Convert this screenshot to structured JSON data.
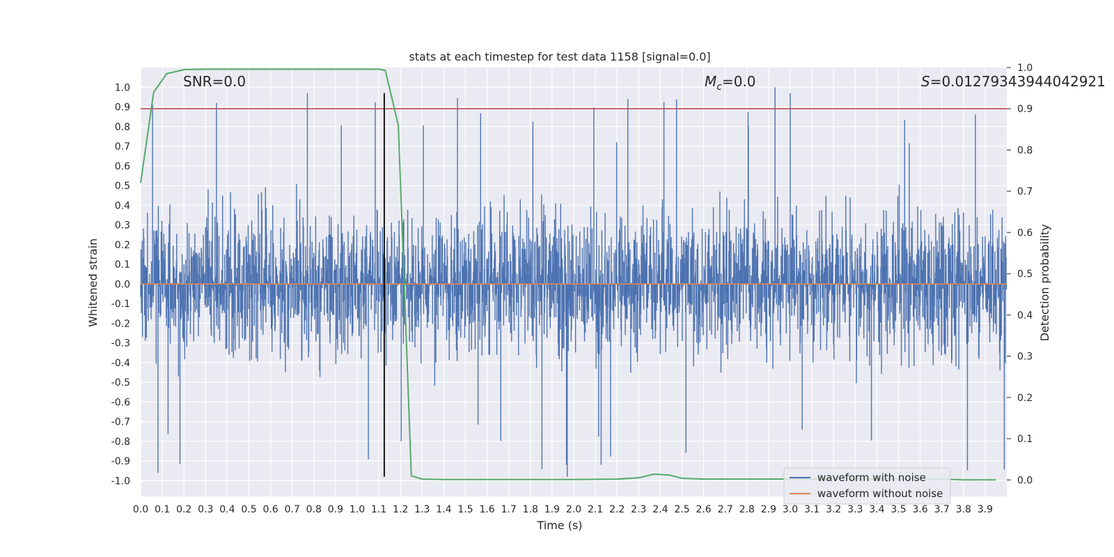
{
  "chart_data": {
    "type": "line",
    "title": "stats at each timestep for test data 1158 [signal=0.0]",
    "xlabel": "Time (s)",
    "ylabel_left": "Whitened strain",
    "ylabel_right": "Detection probability",
    "xlim": [
      0.0,
      4.0
    ],
    "ylim_left": [
      -1.08,
      1.1
    ],
    "ylim_right": [
      -0.04,
      1.0
    ],
    "x_ticks": [
      "0.0",
      "0.1",
      "0.2",
      "0.3",
      "0.4",
      "0.5",
      "0.6",
      "0.7",
      "0.8",
      "0.9",
      "1.0",
      "1.1",
      "1.2",
      "1.3",
      "1.4",
      "1.5",
      "1.6",
      "1.7",
      "1.8",
      "1.9",
      "2.0",
      "2.1",
      "2.2",
      "2.3",
      "2.4",
      "2.5",
      "2.6",
      "2.7",
      "2.8",
      "2.9",
      "3.0",
      "3.1",
      "3.2",
      "3.3",
      "3.4",
      "3.5",
      "3.6",
      "3.7",
      "3.8",
      "3.9"
    ],
    "y_ticks_left": [
      "1.0",
      "0.9",
      "0.8",
      "0.7",
      "0.6",
      "0.5",
      "0.4",
      "0.3",
      "0.2",
      "0.1",
      "0.0",
      "-0.1",
      "-0.2",
      "-0.3",
      "-0.4",
      "-0.5",
      "-0.6",
      "-0.7",
      "-0.8",
      "-0.9",
      "-1.0"
    ],
    "y_ticks_right": [
      "1.0",
      "0.9",
      "0.8",
      "0.7",
      "0.6",
      "0.5",
      "0.4",
      "0.3",
      "0.2",
      "0.1",
      "0.0"
    ],
    "annotations": {
      "snr": "SNR=0.0",
      "mc": "=0.0",
      "mc_symbol": "M",
      "mc_sub": "c",
      "s": "=0.01279343944042921",
      "s_symbol": "S"
    },
    "threshold_right": 0.9,
    "vertical_line_x": 1.125,
    "legend": {
      "position": "lower right",
      "entries": [
        "waveform with noise",
        "waveform without noise"
      ]
    },
    "colors": {
      "noise": "#4c72b0",
      "clean": "#dd8452",
      "probability": "#55a868",
      "threshold": "#c44e52",
      "vline": "#000000",
      "background": "#eaeaf2"
    },
    "series": [
      {
        "name": "waveform with noise",
        "axis": "left",
        "description_values": "random noise with amplitude up to ~1.0 (peak 1.0 at t≈2.93, min -0.98 at t≈1.97)"
      },
      {
        "name": "waveform without noise",
        "axis": "left",
        "x": [
          0.0,
          4.0
        ],
        "y": [
          0.0,
          0.0
        ]
      },
      {
        "name": "detection probability",
        "axis": "right",
        "x": [
          0.0,
          0.06,
          0.12,
          0.2,
          0.3,
          0.5,
          0.8,
          1.0,
          1.1,
          1.13,
          1.19,
          1.25,
          1.3,
          1.4,
          1.6,
          1.8,
          2.0,
          2.2,
          2.3,
          2.37,
          2.44,
          2.5,
          2.6,
          2.8,
          3.0,
          3.2,
          3.5,
          3.7,
          3.8,
          3.95
        ],
        "y": [
          0.72,
          0.94,
          0.985,
          0.995,
          0.996,
          0.996,
          0.996,
          0.996,
          0.996,
          0.993,
          0.86,
          0.01,
          0.002,
          0.001,
          0.001,
          0.001,
          0.001,
          0.002,
          0.005,
          0.014,
          0.012,
          0.004,
          0.002,
          0.002,
          0.002,
          0.002,
          0.002,
          0.002,
          0.0,
          0.0
        ]
      }
    ]
  }
}
